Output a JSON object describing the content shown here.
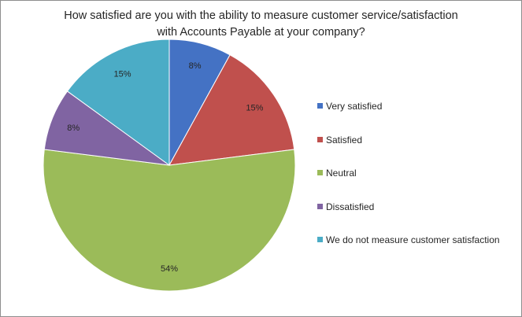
{
  "chart_data": {
    "type": "pie",
    "title_lines": [
      "How satisfied are you with the ability to measure customer service/satisfaction",
      "with Accounts Payable at your company?"
    ],
    "slices": [
      {
        "label": "Very satisfied",
        "value": 8,
        "display": "8%",
        "color": "#4472C4"
      },
      {
        "label": "Satisfied",
        "value": 15,
        "display": "15%",
        "color": "#C0504D"
      },
      {
        "label": "Neutral",
        "value": 54,
        "display": "54%",
        "color": "#9BBB59"
      },
      {
        "label": "Dissatisfied",
        "value": 8,
        "display": "8%",
        "color": "#8064A2"
      },
      {
        "label": "We do not measure customer satisfaction",
        "value": 15,
        "display": "15%",
        "color": "#4BACC6"
      }
    ],
    "legend_position": "right"
  }
}
